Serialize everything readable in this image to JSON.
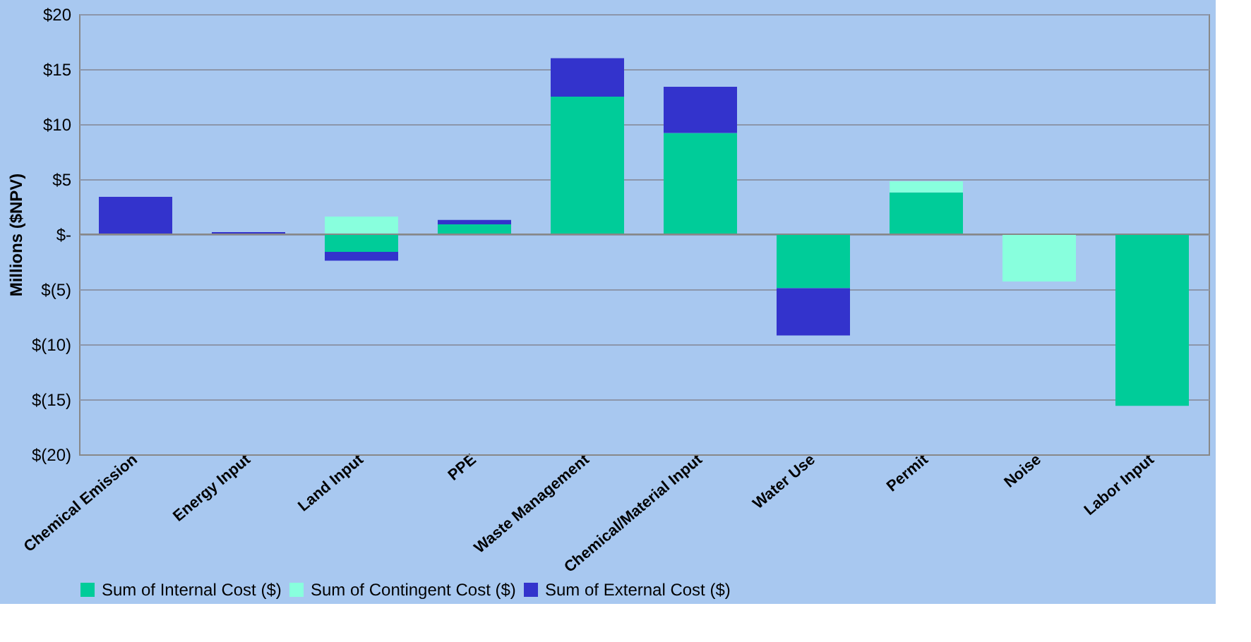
{
  "chart_data": {
    "type": "bar",
    "stacked": true,
    "ylabel": "Millions ($NPV)",
    "categories": [
      "Chemical Emission",
      "Energy Input",
      "Land Input",
      "PPE",
      "Waste Management",
      "Chemical/Material Input",
      "Water Use",
      "Permit",
      "Noise",
      "Labor Input"
    ],
    "series": [
      {
        "name": "Sum of Internal Cost ($)",
        "color": "#00cc99",
        "values": [
          0,
          0,
          -1.6,
          0.9,
          12.5,
          9.2,
          -4.9,
          3.8,
          0,
          -15.6
        ]
      },
      {
        "name": "Sum of Contingent Cost ($)",
        "color": "#88ffdd",
        "values": [
          0,
          0,
          1.6,
          0,
          0,
          0,
          0,
          1.0,
          -4.3,
          0
        ]
      },
      {
        "name": "Sum of External Cost ($)",
        "color": "#3333cc",
        "values": [
          3.4,
          0.2,
          -0.8,
          0.4,
          3.5,
          4.2,
          -4.3,
          0,
          0,
          0
        ]
      }
    ],
    "ylim": [
      -20,
      20
    ],
    "yticks": [
      {
        "value": -20,
        "label": "$(20)"
      },
      {
        "value": -15,
        "label": "$(15)"
      },
      {
        "value": -10,
        "label": "$(10)"
      },
      {
        "value": -5,
        "label": "$(5)"
      },
      {
        "value": 0,
        "label": "$-"
      },
      {
        "value": 5,
        "label": "$5"
      },
      {
        "value": 10,
        "label": "$10"
      },
      {
        "value": 15,
        "label": "$15"
      },
      {
        "value": 20,
        "label": "$20"
      }
    ],
    "grid": "y",
    "legend": "bottom"
  }
}
